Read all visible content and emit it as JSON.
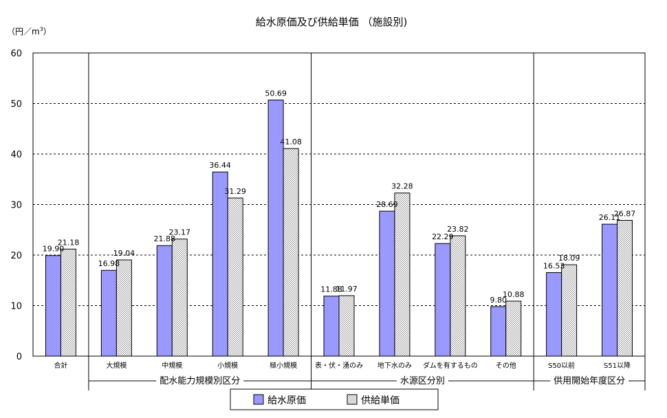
{
  "chart_data": {
    "type": "bar",
    "title": "給水原価及び供給単価 （施設別)",
    "ylabel": "（円／m",
    "ylabel_sup": "3",
    "ylabel_end": "）",
    "ylim": [
      0,
      60
    ],
    "yticks": [
      "0",
      "10",
      "20",
      "30",
      "40",
      "50",
      "60"
    ],
    "grid": true,
    "legend_position": "bottom-center",
    "categories": [
      "合計",
      "大規模",
      "中規模",
      "小規模",
      "極小規模",
      "表・伏・湧のみ",
      "地下水のみ",
      "ダムを有するもの",
      "その他",
      "S50以前",
      "S51以降"
    ],
    "series": [
      {
        "name": "給水原価",
        "color": "#9999ff",
        "values": [
          19.9,
          16.98,
          21.88,
          36.44,
          50.69,
          11.88,
          28.69,
          22.29,
          9.8,
          16.53,
          26.11
        ],
        "labels": [
          "19.90",
          "16.98",
          "21.88",
          "36.44",
          "50.69",
          "11.88",
          "28.69",
          "22.29",
          "9.80",
          "16.53",
          "26.11"
        ]
      },
      {
        "name": "供給単価",
        "color": "#cccccc",
        "values": [
          21.18,
          19.04,
          23.17,
          31.29,
          41.08,
          11.97,
          32.28,
          23.82,
          10.88,
          18.09,
          26.87
        ],
        "labels": [
          "21.18",
          "19.04",
          "23.17",
          "31.29",
          "41.08",
          "11.97",
          "32.28",
          "23.82",
          "10.88",
          "18.09",
          "26.87"
        ]
      }
    ],
    "groups": [
      {
        "label": "配水能力規模別区分",
        "from": 1,
        "to": 4
      },
      {
        "label": "水源区分別",
        "from": 5,
        "to": 8
      },
      {
        "label": "供用開始年度区分",
        "from": 9,
        "to": 10
      }
    ]
  }
}
